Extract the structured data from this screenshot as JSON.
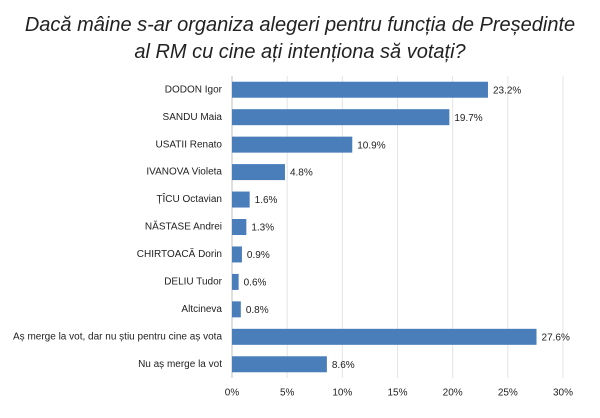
{
  "chart_data": {
    "type": "barh",
    "title": "Dacă mâine s-ar organiza alegeri pentru funcția de Președinte al RM cu cine ați intenționa să votați?",
    "categories": [
      "DODON Igor",
      "SANDU Maia",
      "USATII Renato",
      "IVANOVA Violeta",
      "ȚÎCU Octavian",
      "NĂSTASE Andrei",
      "CHIRTOACĂ Dorin",
      "DELIU Tudor",
      "Altcineva",
      "Aș merge la vot, dar nu știu pentru cine aș vota",
      "Nu aș merge la vot"
    ],
    "values": [
      23.2,
      19.7,
      10.9,
      4.8,
      1.6,
      1.3,
      0.9,
      0.6,
      0.8,
      27.6,
      8.6
    ],
    "value_labels": [
      "23.2%",
      "19.7%",
      "10.9%",
      "4.8%",
      "1.6%",
      "1.3%",
      "0.9%",
      "0.6%",
      "0.8%",
      "27.6%",
      "8.6%"
    ],
    "color": "#4a7ebb",
    "xlim": [
      0,
      30
    ],
    "xticks": [
      {
        "value": 0,
        "label": "0%"
      },
      {
        "value": 5,
        "label": "5%"
      },
      {
        "value": 10,
        "label": "10%"
      },
      {
        "value": 15,
        "label": "15%"
      },
      {
        "value": 20,
        "label": "20%"
      },
      {
        "value": 25,
        "label": "25%"
      },
      {
        "value": 30,
        "label": "30%"
      }
    ],
    "grid": true
  }
}
